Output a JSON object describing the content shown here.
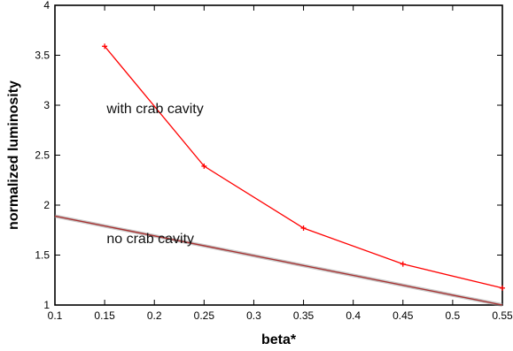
{
  "chart_data": {
    "type": "line",
    "xlabel": "beta*",
    "ylabel": "normalized luminosity",
    "xlim": [
      0.1,
      0.55
    ],
    "ylim": [
      1,
      4
    ],
    "xticks": [
      "0.1",
      "0.15",
      "0.2",
      "0.25",
      "0.3",
      "0.35",
      "0.4",
      "0.45",
      "0.5",
      "0.55"
    ],
    "yticks": [
      "1",
      "1.5",
      "2",
      "2.5",
      "3",
      "3.5",
      "4"
    ],
    "grid": false,
    "series": [
      {
        "name": "with crab cavity",
        "color": "#ff0000",
        "marker": "plus",
        "x": [
          0.15,
          0.25,
          0.35,
          0.45,
          0.55
        ],
        "y": [
          3.59,
          2.39,
          1.77,
          1.41,
          1.17
        ]
      },
      {
        "name": "no crab cavity",
        "color": "#a83232",
        "marker": "none",
        "x": [
          0.1,
          0.55
        ],
        "y": [
          1.89,
          1.0
        ]
      }
    ],
    "annotations": [
      {
        "text": "with crab cavity",
        "x": 0.152,
        "y": 2.92
      },
      {
        "text": "no crab cavity",
        "x": 0.152,
        "y": 1.62
      }
    ]
  }
}
